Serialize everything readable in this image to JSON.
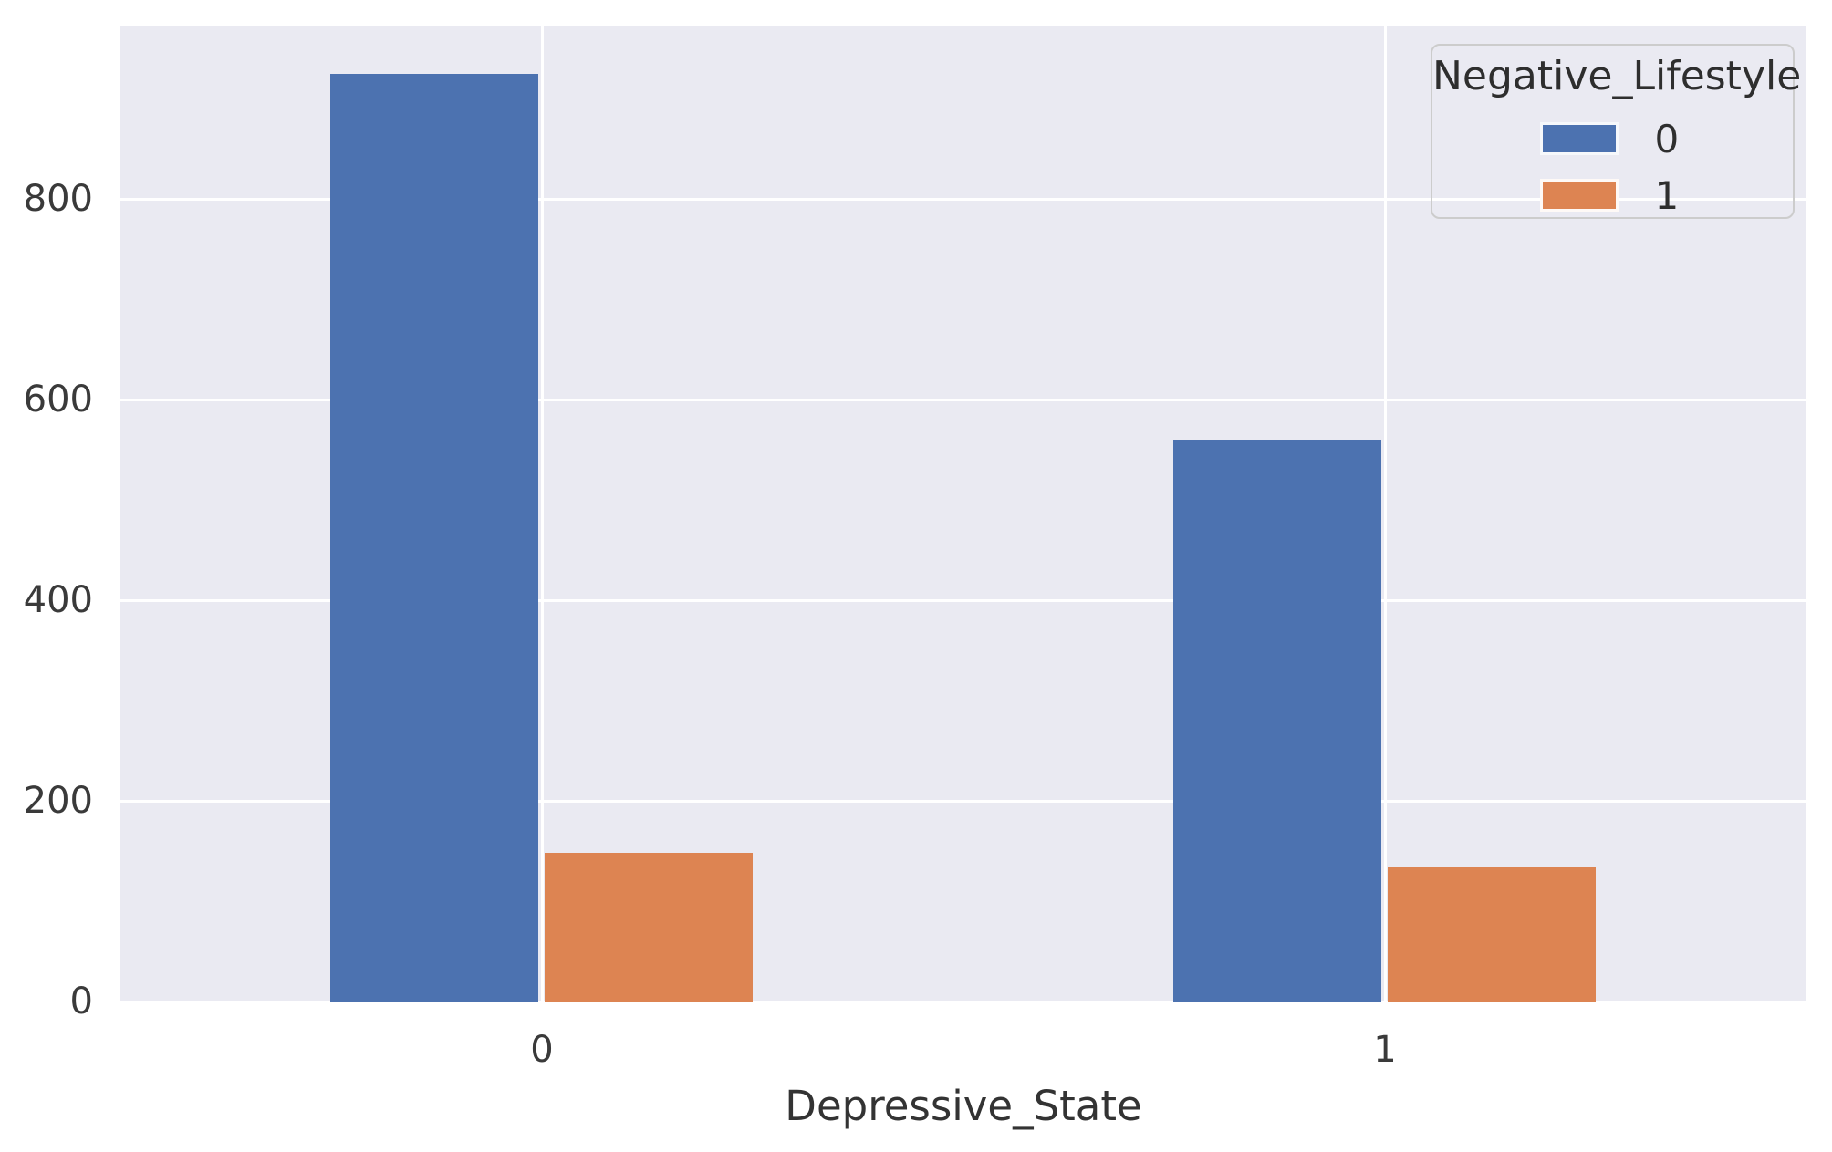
{
  "chart_data": {
    "type": "bar",
    "title": "",
    "xlabel": "Depressive_State",
    "ylabel": "",
    "categories": [
      "0",
      "1"
    ],
    "series": [
      {
        "name": "0",
        "color": "#4C72B0",
        "values": [
          925,
          560
        ]
      },
      {
        "name": "1",
        "color": "#DD8452",
        "values": [
          148,
          135
        ]
      }
    ],
    "legend_title": "Negative_Lifestyle",
    "legend_position": "upper right",
    "yticks": [
      0,
      200,
      400,
      600,
      800
    ],
    "ylim": [
      0,
      973
    ],
    "grid": true,
    "plot_background": "#EAEAF2",
    "gridline_color": "#FFFFFF",
    "figure_background": "#FFFFFF"
  }
}
